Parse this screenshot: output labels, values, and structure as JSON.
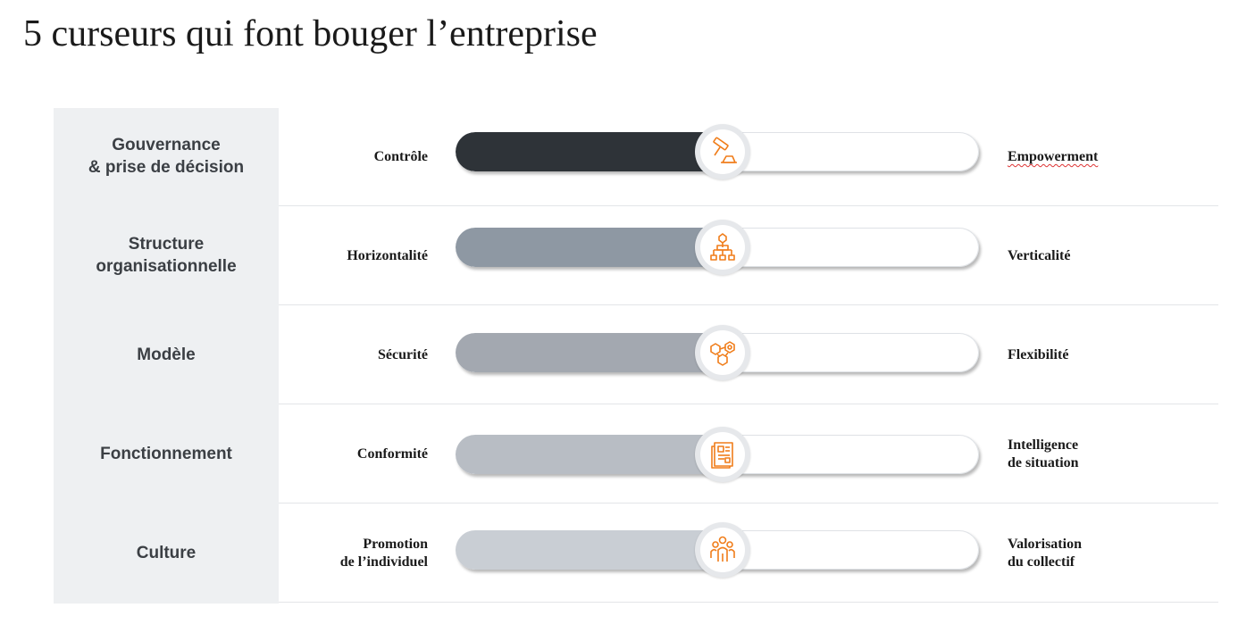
{
  "title": "5 curseurs qui font bouger l’entreprise",
  "rows": [
    {
      "category": "Gouvernance\n& prise de décision",
      "left": "Contrôle",
      "right": "Empowerment",
      "level": 0.5,
      "fill_color": "#2e3338",
      "icon": "gavel-icon"
    },
    {
      "category": "Structure\norganisationnelle",
      "left": "Horizontalité",
      "right": "Verticalité",
      "level": 0.5,
      "fill_color": "#8e98a3",
      "icon": "org-chart-icon"
    },
    {
      "category": "Modèle",
      "left": "Sécurité",
      "right": "Flexibilité",
      "level": 0.5,
      "fill_color": "#a3a8b0",
      "icon": "network-icon"
    },
    {
      "category": "Fonctionnement",
      "left": "Conformité",
      "right": "Intelligence\nde situation",
      "level": 0.5,
      "fill_color": "#b8bdc4",
      "icon": "document-icon"
    },
    {
      "category": "Culture",
      "left": "Promotion\nde l’individuel",
      "right": "Valorisation\ndu collectif",
      "level": 0.5,
      "fill_color": "#c9ced4",
      "icon": "team-icon"
    }
  ],
  "accent_color": "#f07d1a"
}
